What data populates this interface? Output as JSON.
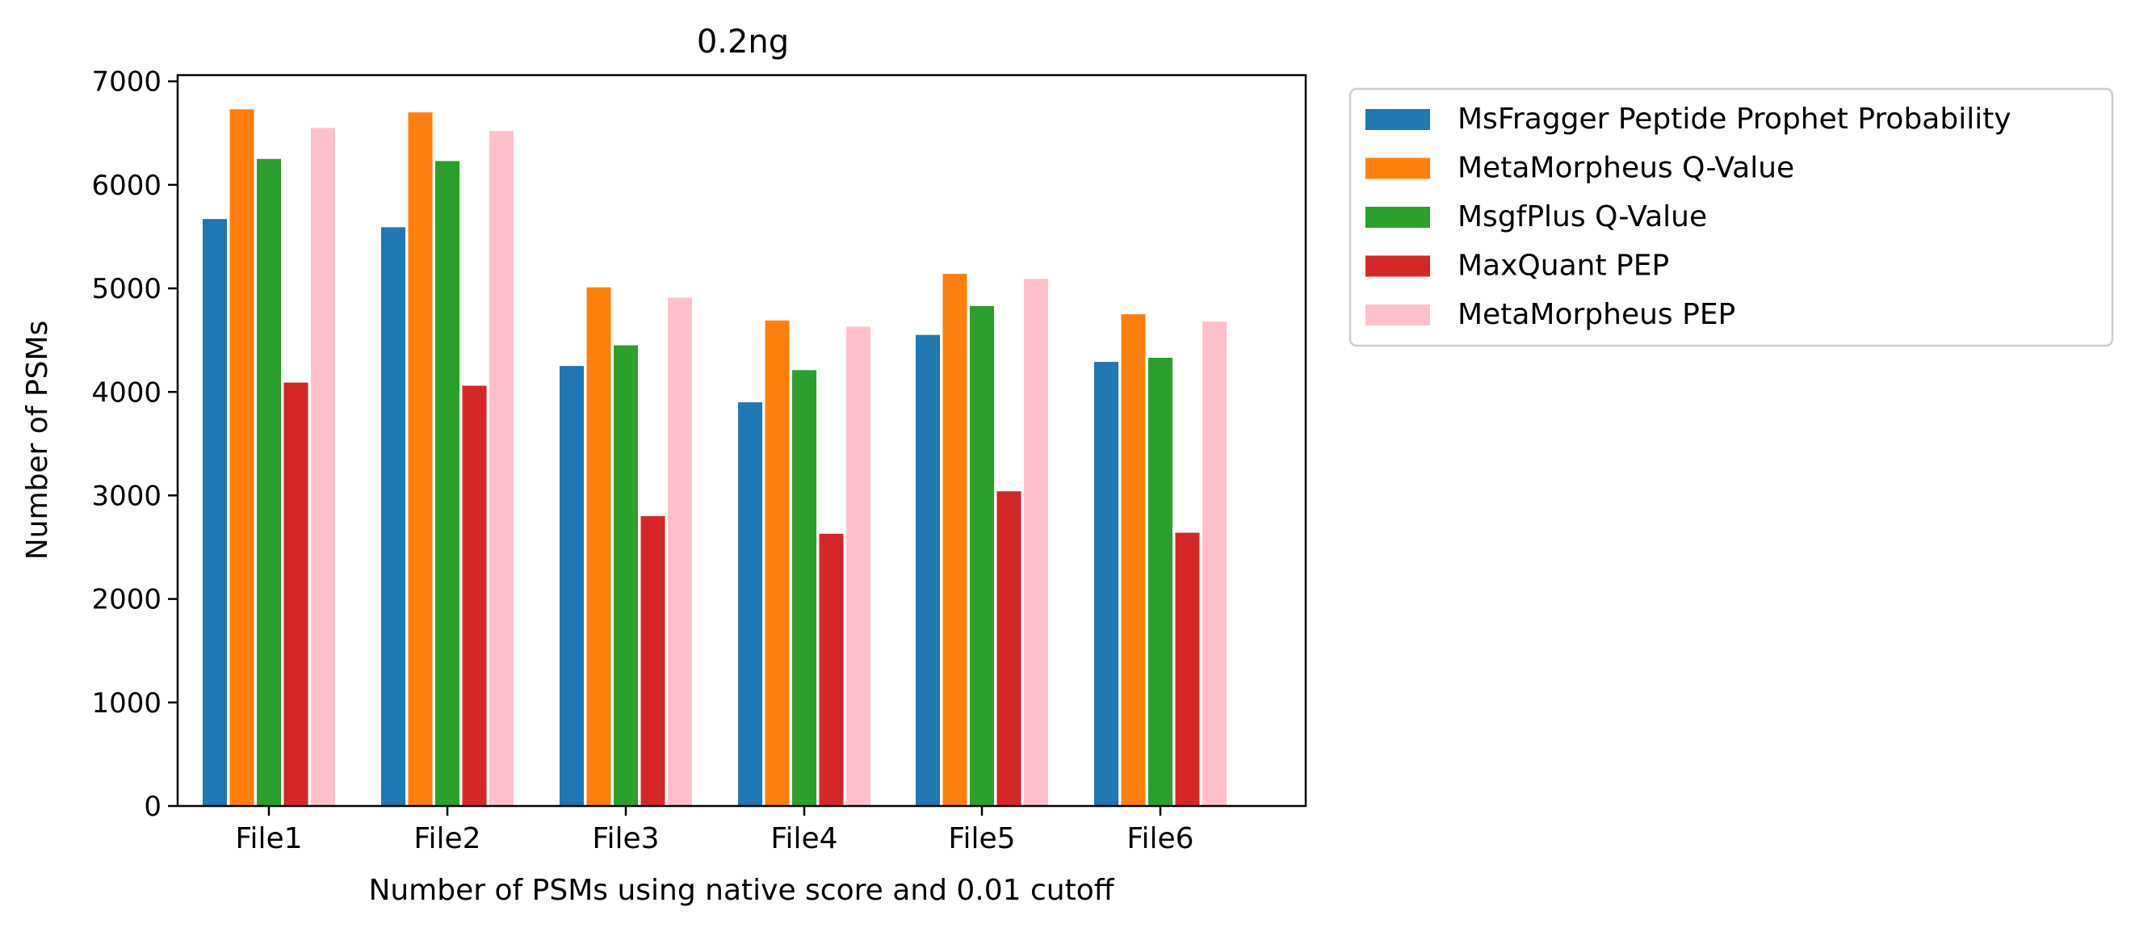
{
  "chart_data": {
    "type": "bar",
    "title": "0.2ng",
    "xlabel": "Number of PSMs using native score and 0.01 cutoff",
    "ylabel": "Number of PSMs",
    "ylim": [
      0,
      7060
    ],
    "yticks": [
      0,
      1000,
      2000,
      3000,
      4000,
      5000,
      6000,
      7000
    ],
    "grid": false,
    "legend_position": "outside-right-top",
    "categories": [
      "File1",
      "File2",
      "File3",
      "File4",
      "File5",
      "File6"
    ],
    "series": [
      {
        "name": "MsFragger Peptide Prophet Probability",
        "color": "#1f77b4",
        "values": [
          5670,
          5590,
          4250,
          3900,
          4550,
          4290
        ]
      },
      {
        "name": "MetaMorpheus Q-Value",
        "color": "#ff7f0e",
        "values": [
          6730,
          6700,
          5010,
          4690,
          5140,
          4750
        ]
      },
      {
        "name": "MsgfPlus Q-Value",
        "color": "#2ca02c",
        "values": [
          6250,
          6230,
          4450,
          4210,
          4830,
          4330
        ]
      },
      {
        "name": "MaxQuant PEP",
        "color": "#d62728",
        "values": [
          4090,
          4060,
          2800,
          2630,
          3040,
          2640
        ]
      },
      {
        "name": "MetaMorpheus PEP",
        "color": "#ffc0cb",
        "values": [
          6550,
          6520,
          4910,
          4630,
          5090,
          4680
        ]
      }
    ]
  }
}
